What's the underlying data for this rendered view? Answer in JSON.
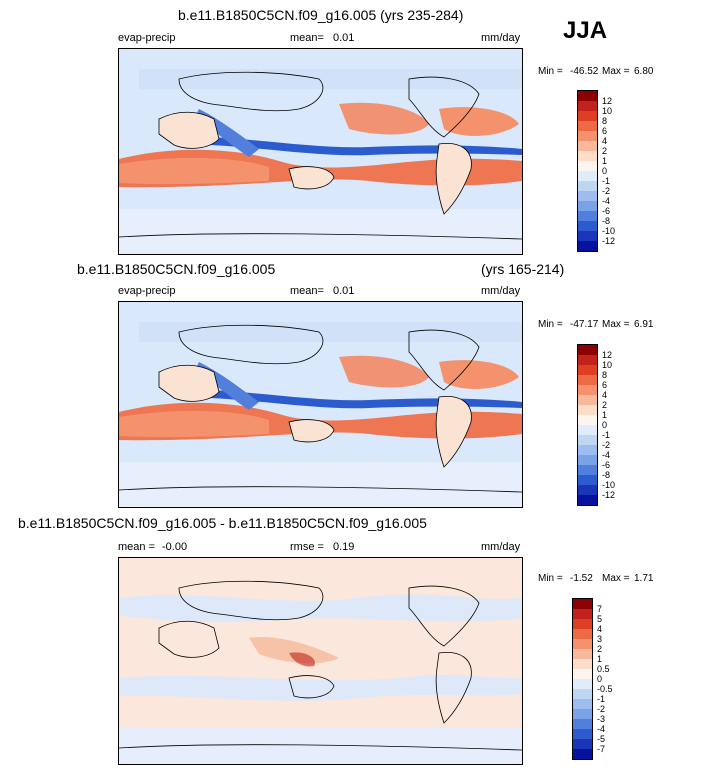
{
  "season": "JJA",
  "panels": [
    {
      "title": "b.e11.B1850C5CN.f09_g16.005 (yrs 235-284)",
      "title_right": "",
      "variable": "evap-precip",
      "mean_label": "mean=",
      "mean_value": "0.01",
      "rmse_label": "",
      "rmse_value": "",
      "units": "mm/day",
      "min_label": "Min =",
      "min_value": "-46.52",
      "max_label": "Max =",
      "max_value": "6.80",
      "levels": [
        "12",
        "10",
        "8",
        "6",
        "4",
        "2",
        "1",
        "0",
        "-1",
        "-2",
        "-4",
        "-6",
        "-8",
        "-10",
        "-12"
      ],
      "colors": [
        "#8b0000",
        "#c1221b",
        "#dc3f24",
        "#ed6a44",
        "#f4926d",
        "#f8b89b",
        "#fcddc9",
        "#fbf4ef",
        "#e0ecfa",
        "#bfd6f3",
        "#9dbdee",
        "#7aa2e6",
        "#527fdb",
        "#2c5bce",
        "#1a35b8",
        "#08129e"
      ]
    },
    {
      "title": "b.e11.B1850C5CN.f09_g16.005",
      "title_right": "(yrs 165-214)",
      "variable": "evap-precip",
      "mean_label": "mean=",
      "mean_value": "0.01",
      "rmse_label": "",
      "rmse_value": "",
      "units": "mm/day",
      "min_label": "Min =",
      "min_value": "-47.17",
      "max_label": "Max =",
      "max_value": "6.91",
      "levels": [
        "12",
        "10",
        "8",
        "6",
        "4",
        "2",
        "1",
        "0",
        "-1",
        "-2",
        "-4",
        "-6",
        "-8",
        "-10",
        "-12"
      ],
      "colors": [
        "#8b0000",
        "#c1221b",
        "#dc3f24",
        "#ed6a44",
        "#f4926d",
        "#f8b89b",
        "#fcddc9",
        "#fbf4ef",
        "#e0ecfa",
        "#bfd6f3",
        "#9dbdee",
        "#7aa2e6",
        "#527fdb",
        "#2c5bce",
        "#1a35b8",
        "#08129e"
      ]
    },
    {
      "title": "b.e11.B1850C5CN.f09_g16.005 - b.e11.B1850C5CN.f09_g16.005",
      "title_right": "",
      "variable": "",
      "mean_label": "mean =",
      "mean_value": "-0.00",
      "rmse_label": "rmse =",
      "rmse_value": "0.19",
      "units": "mm/day",
      "min_label": "Min =",
      "min_value": "-1.52",
      "max_label": "Max =",
      "max_value": "1.71",
      "levels": [
        "7",
        "5",
        "4",
        "3",
        "2",
        "1",
        "0.5",
        "0",
        "-0.5",
        "-1",
        "-2",
        "-3",
        "-4",
        "-5",
        "-7"
      ],
      "colors": [
        "#8b0000",
        "#c1221b",
        "#dc3f24",
        "#ed6a44",
        "#f4926d",
        "#f8b89b",
        "#fcddc9",
        "#fbf4ef",
        "#e0ecfa",
        "#bfd6f3",
        "#9dbdee",
        "#7aa2e6",
        "#527fdb",
        "#2c5bce",
        "#1a35b8",
        "#08129e"
      ]
    }
  ],
  "chart_data": [
    {
      "type": "heatmap",
      "title": "b.e11.B1850C5CN.f09_g16.005 (yrs 235-284)",
      "variable": "evap-precip",
      "units": "mm/day",
      "mean": 0.01,
      "min": -46.52,
      "max": 6.8,
      "contour_levels": [
        -12,
        -10,
        -8,
        -6,
        -4,
        -2,
        -1,
        0,
        1,
        2,
        4,
        6,
        8,
        10,
        12
      ]
    },
    {
      "type": "heatmap",
      "title": "b.e11.B1850C5CN.f09_g16.005 (yrs 165-214)",
      "variable": "evap-precip",
      "units": "mm/day",
      "mean": 0.01,
      "min": -47.17,
      "max": 6.91,
      "contour_levels": [
        -12,
        -10,
        -8,
        -6,
        -4,
        -2,
        -1,
        0,
        1,
        2,
        4,
        6,
        8,
        10,
        12
      ]
    },
    {
      "type": "heatmap",
      "title": "b.e11.B1850C5CN.f09_g16.005 - b.e11.B1850C5CN.f09_g16.005",
      "units": "mm/day",
      "mean": -0.0,
      "rmse": 0.19,
      "min": -1.52,
      "max": 1.71,
      "contour_levels": [
        -7,
        -5,
        -4,
        -3,
        -2,
        -1,
        -0.5,
        0,
        0.5,
        1,
        2,
        3,
        4,
        5,
        7
      ]
    }
  ]
}
